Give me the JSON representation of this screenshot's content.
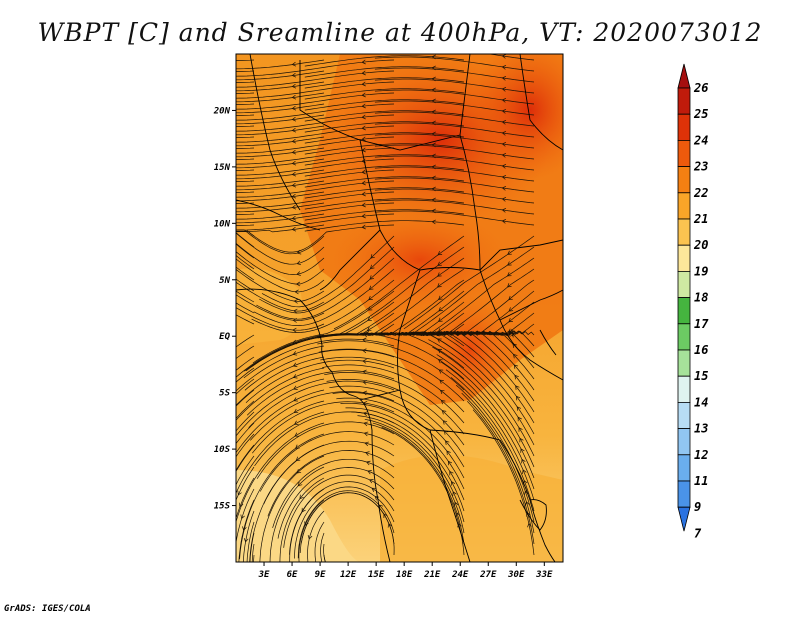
{
  "title": "WBPT [C] and Sreamline at 400hPa, VT: 2020073012",
  "footer": "GrADS: IGES/COLA",
  "map": {
    "lat_labels": [
      "20N",
      "15N",
      "10N",
      "5N",
      "EQ",
      "5S",
      "10S",
      "15S"
    ],
    "lat_values": [
      20,
      15,
      10,
      5,
      0,
      -5,
      -10,
      -15
    ],
    "lon_labels": [
      "3E",
      "6E",
      "9E",
      "12E",
      "15E",
      "18E",
      "21E",
      "24E",
      "27E",
      "30E",
      "33E"
    ],
    "lon_values": [
      3,
      6,
      9,
      12,
      15,
      18,
      21,
      24,
      27,
      30,
      33
    ],
    "lon_range": [
      0,
      35
    ],
    "lat_range": [
      -20,
      25
    ]
  },
  "colorbar": {
    "labels": [
      "26",
      "25",
      "24",
      "23",
      "22",
      "21",
      "20",
      "19",
      "18",
      "17",
      "16",
      "15",
      "14",
      "13",
      "12",
      "11",
      "9",
      "7"
    ],
    "colors": [
      "#a50f0f",
      "#c01b0b",
      "#de3208",
      "#ee5a0c",
      "#f58012",
      "#f9a528",
      "#fbc350",
      "#fde79a",
      "#cfe9a2",
      "#45b43f",
      "#6ccb63",
      "#a6e29a",
      "#dff3f0",
      "#b7ddf5",
      "#91c6f2",
      "#6aaeee",
      "#4a93e8",
      "#2a72e0"
    ]
  },
  "colors": {
    "hot": "#e23a0c",
    "warm": "#f38b17",
    "mild": "#f8b13a",
    "cool": "#fbd885"
  }
}
